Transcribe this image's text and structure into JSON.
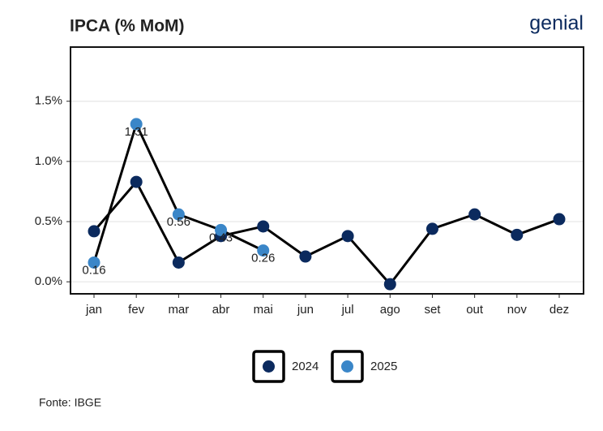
{
  "chart_data": {
    "type": "line",
    "title": "IPCA (% MoM)",
    "logo": "genial",
    "source": "Fonte: IBGE",
    "categories": [
      "jan",
      "fev",
      "mar",
      "abr",
      "mai",
      "jun",
      "jul",
      "ago",
      "set",
      "out",
      "nov",
      "dez"
    ],
    "series": [
      {
        "name": "2024",
        "color": "#0b2a5e",
        "values": [
          0.42,
          0.83,
          0.16,
          0.38,
          0.46,
          0.21,
          0.38,
          -0.02,
          0.44,
          0.56,
          0.39,
          0.52
        ]
      },
      {
        "name": "2025",
        "color": "#3a86c8",
        "values": [
          0.16,
          1.31,
          0.56,
          0.43,
          0.26,
          null,
          null,
          null,
          null,
          null,
          null,
          null
        ],
        "show_labels": true
      }
    ],
    "ylim": [
      -0.1,
      1.95
    ],
    "yticks": [
      {
        "value": 0,
        "label": "0.0%"
      },
      {
        "value": 0.5,
        "label": "0.5%"
      },
      {
        "value": 1,
        "label": "1.0%"
      },
      {
        "value": 1.5,
        "label": "1.5%"
      }
    ],
    "grid": true,
    "legend": "bottom"
  }
}
